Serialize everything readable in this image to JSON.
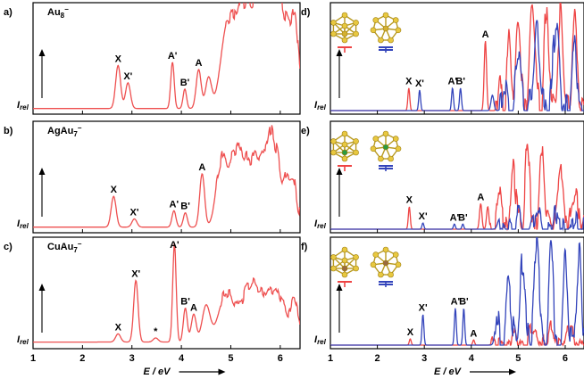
{
  "chart_data": {
    "type": "line",
    "xlabel": "E / eV",
    "xlim": [
      1,
      6.4
    ],
    "x_ticks": [
      "1",
      "2",
      "3",
      "4",
      "5",
      "6"
    ],
    "y_axis_label": "I",
    "y_axis_label_sub": "rel",
    "colors": {
      "spectrum": "#ee5050",
      "calc_red": "#ee4444",
      "calc_blue": "#3344bb"
    },
    "panels": [
      {
        "id": "a",
        "panel_label": "a)",
        "compound": "Au",
        "sub": "8",
        "sup": "−",
        "column": "left",
        "row": 0,
        "kind": "exp",
        "peaks": [
          {
            "label": "X",
            "x": 2.72
          },
          {
            "label": "X'",
            "x": 2.92
          },
          {
            "label": "A'",
            "x": 3.82
          },
          {
            "label": "B'",
            "x": 4.07
          },
          {
            "label": "A",
            "x": 4.35
          }
        ],
        "series": [
          {
            "color": "spectrum",
            "baseline": 0.02,
            "noise": 0.06,
            "onset": 4.9,
            "seed": 1,
            "peaks": [
              [
                2.72,
                0.42,
                0.05
              ],
              [
                2.92,
                0.25,
                0.05
              ],
              [
                3.82,
                0.45,
                0.035
              ],
              [
                4.07,
                0.19,
                0.035
              ],
              [
                4.35,
                0.38,
                0.05
              ],
              [
                4.55,
                0.3,
                0.06
              ],
              [
                4.9,
                0.6,
                0.12
              ],
              [
                5.2,
                0.85,
                0.18
              ],
              [
                5.6,
                0.98,
                0.2
              ],
              [
                6.0,
                0.95,
                0.2
              ],
              [
                6.3,
                0.6,
                0.08
              ]
            ]
          }
        ]
      },
      {
        "id": "b",
        "panel_label": "b)",
        "compound": "AgAu",
        "sub": "7",
        "sup": "−",
        "column": "left",
        "row": 1,
        "kind": "exp",
        "peaks": [
          {
            "label": "X",
            "x": 2.63
          },
          {
            "label": "X'",
            "x": 3.05
          },
          {
            "label": "A'",
            "x": 3.85
          },
          {
            "label": "B'",
            "x": 4.08
          },
          {
            "label": "A",
            "x": 4.42
          }
        ],
        "series": [
          {
            "color": "spectrum",
            "baseline": 0.02,
            "noise": 0.07,
            "onset": 4.7,
            "seed": 2,
            "peaks": [
              [
                2.63,
                0.3,
                0.05
              ],
              [
                3.05,
                0.08,
                0.05
              ],
              [
                3.85,
                0.16,
                0.04
              ],
              [
                4.08,
                0.14,
                0.04
              ],
              [
                4.42,
                0.52,
                0.05
              ],
              [
                4.8,
                0.6,
                0.1
              ],
              [
                5.1,
                0.68,
                0.15
              ],
              [
                5.5,
                0.72,
                0.18
              ],
              [
                5.85,
                0.82,
                0.12
              ],
              [
                6.2,
                0.55,
                0.12
              ]
            ]
          }
        ]
      },
      {
        "id": "c",
        "panel_label": "c)",
        "compound": "CuAu",
        "sub": "7",
        "sup": "−",
        "column": "left",
        "row": 2,
        "kind": "exp",
        "peaks": [
          {
            "label": "X",
            "x": 2.72
          },
          {
            "label": "X'",
            "x": 3.08
          },
          {
            "label": "*",
            "x": 3.48
          },
          {
            "label": "A'",
            "x": 3.86
          },
          {
            "label": "B'",
            "x": 4.08
          },
          {
            "label": "A",
            "x": 4.25
          }
        ],
        "series": [
          {
            "color": "spectrum",
            "baseline": 0.03,
            "noise": 0.04,
            "onset": 4.8,
            "seed": 3,
            "peaks": [
              [
                2.72,
                0.08,
                0.05
              ],
              [
                3.08,
                0.6,
                0.045
              ],
              [
                3.48,
                0.04,
                0.05
              ],
              [
                3.86,
                0.96,
                0.035
              ],
              [
                4.08,
                0.33,
                0.04
              ],
              [
                4.25,
                0.27,
                0.05
              ],
              [
                4.5,
                0.35,
                0.08
              ],
              [
                4.9,
                0.45,
                0.15
              ],
              [
                5.4,
                0.55,
                0.2
              ],
              [
                5.9,
                0.5,
                0.2
              ],
              [
                6.3,
                0.35,
                0.08
              ]
            ]
          }
        ]
      },
      {
        "id": "d",
        "panel_label": "d)",
        "column": "right",
        "row": 0,
        "kind": "calc",
        "cluster_center": "#d4b030",
        "peaks": [
          {
            "label": "X",
            "x": 2.67
          },
          {
            "label": "X'",
            "x": 2.9
          },
          {
            "label": "A'",
            "x": 3.6
          },
          {
            "label": "B'",
            "x": 3.77
          },
          {
            "label": "A",
            "x": 4.3
          }
        ],
        "series": [
          {
            "color": "calc_red",
            "baseline": 0.0,
            "noise": 0.12,
            "onset": 4.5,
            "seed": 11,
            "peaks": [
              [
                2.67,
                0.22,
                0.02
              ],
              [
                4.3,
                0.68,
                0.025
              ],
              [
                4.6,
                0.4,
                0.03
              ],
              [
                4.8,
                0.7,
                0.04
              ],
              [
                5.0,
                0.9,
                0.05
              ],
              [
                5.3,
                1.0,
                0.06
              ],
              [
                5.6,
                0.95,
                0.05
              ],
              [
                5.9,
                0.9,
                0.05
              ],
              [
                6.2,
                0.95,
                0.05
              ]
            ]
          },
          {
            "color": "calc_blue",
            "baseline": 0.0,
            "noise": 0.12,
            "onset": 4.6,
            "seed": 12,
            "peaks": [
              [
                2.9,
                0.2,
                0.02
              ],
              [
                3.6,
                0.22,
                0.02
              ],
              [
                3.77,
                0.22,
                0.02
              ],
              [
                4.45,
                0.15,
                0.03
              ],
              [
                4.7,
                0.3,
                0.04
              ],
              [
                5.0,
                0.55,
                0.05
              ],
              [
                5.4,
                0.75,
                0.06
              ],
              [
                5.8,
                0.85,
                0.06
              ],
              [
                6.2,
                0.7,
                0.05
              ]
            ]
          }
        ]
      },
      {
        "id": "e",
        "panel_label": "e)",
        "column": "right",
        "row": 1,
        "kind": "calc",
        "cluster_center": "#2a9a40",
        "peaks": [
          {
            "label": "X",
            "x": 2.68
          },
          {
            "label": "X'",
            "x": 2.97
          },
          {
            "label": "A'",
            "x": 3.64
          },
          {
            "label": "B'",
            "x": 3.82
          },
          {
            "label": "A",
            "x": 4.2
          }
        ],
        "series": [
          {
            "color": "calc_red",
            "baseline": 0.0,
            "noise": 0.12,
            "onset": 4.4,
            "seed": 21,
            "peaks": [
              [
                2.68,
                0.22,
                0.02
              ],
              [
                4.2,
                0.25,
                0.025
              ],
              [
                4.35,
                0.22,
                0.025
              ],
              [
                4.6,
                0.4,
                0.04
              ],
              [
                4.9,
                0.6,
                0.05
              ],
              [
                5.2,
                0.85,
                0.05
              ],
              [
                5.5,
                0.75,
                0.05
              ],
              [
                5.9,
                0.6,
                0.06
              ],
              [
                6.2,
                0.45,
                0.06
              ]
            ]
          },
          {
            "color": "calc_blue",
            "baseline": 0.0,
            "noise": 0.08,
            "onset": 4.6,
            "seed": 22,
            "peaks": [
              [
                2.97,
                0.06,
                0.02
              ],
              [
                3.64,
                0.05,
                0.02
              ],
              [
                3.82,
                0.05,
                0.02
              ],
              [
                4.6,
                0.1,
                0.04
              ],
              [
                5.0,
                0.15,
                0.05
              ],
              [
                5.4,
                0.2,
                0.05
              ],
              [
                5.8,
                0.15,
                0.05
              ],
              [
                6.2,
                0.1,
                0.05
              ]
            ]
          }
        ]
      },
      {
        "id": "f",
        "panel_label": "f)",
        "column": "right",
        "row": 2,
        "kind": "calc",
        "cluster_center": "#9a6a40",
        "peaks": [
          {
            "label": "X",
            "x": 2.7
          },
          {
            "label": "X'",
            "x": 2.97
          },
          {
            "label": "A'",
            "x": 3.66
          },
          {
            "label": "B'",
            "x": 3.84
          },
          {
            "label": "A",
            "x": 4.05
          }
        ],
        "series": [
          {
            "color": "calc_red",
            "baseline": 0.0,
            "noise": 0.06,
            "onset": 4.4,
            "seed": 31,
            "peaks": [
              [
                2.7,
                0.06,
                0.02
              ],
              [
                4.05,
                0.05,
                0.02
              ],
              [
                4.5,
                0.08,
                0.04
              ],
              [
                4.9,
                0.12,
                0.05
              ],
              [
                5.3,
                0.16,
                0.06
              ],
              [
                5.7,
                0.15,
                0.06
              ],
              [
                6.1,
                0.18,
                0.06
              ]
            ]
          },
          {
            "color": "calc_blue",
            "baseline": 0.0,
            "noise": 0.14,
            "onset": 4.5,
            "seed": 32,
            "peaks": [
              [
                2.97,
                0.3,
                0.02
              ],
              [
                3.66,
                0.36,
                0.02
              ],
              [
                3.84,
                0.36,
                0.02
              ],
              [
                4.55,
                0.3,
                0.04
              ],
              [
                4.8,
                0.6,
                0.05
              ],
              [
                5.1,
                0.85,
                0.05
              ],
              [
                5.4,
                1.0,
                0.06
              ],
              [
                5.7,
                0.95,
                0.05
              ],
              [
                6.0,
                0.9,
                0.05
              ],
              [
                6.3,
                0.85,
                0.05
              ]
            ]
          }
        ]
      }
    ]
  }
}
